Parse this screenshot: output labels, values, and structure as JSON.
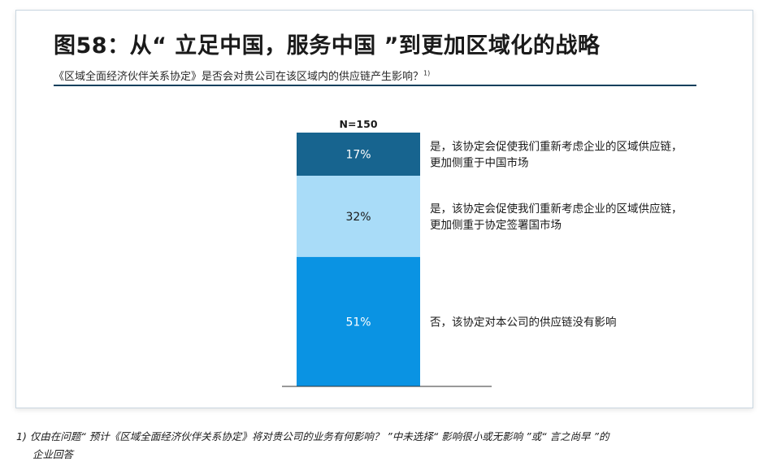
{
  "figure": {
    "title": "图58：从“ 立足中国，服务中国 ”到更加区域化的战略",
    "subtitle": "《区域全面经济伙伴关系协定》是否会对贵公司在该区域内的供应链产生影响？",
    "subtitle_note": "1)"
  },
  "chart_data": {
    "type": "bar",
    "stacked": true,
    "sample_label": "N=150",
    "unit": "%",
    "segments": [
      {
        "value": 17,
        "label": "17%",
        "text_lines": [
          "是，该协定会促使我们重新考虑企业的区域供应链，",
          "更加侧重于中国市场"
        ],
        "color": "#17648f",
        "label_color": "#ffffff"
      },
      {
        "value": 32,
        "label": "32%",
        "text_lines": [
          "是，该协定会促使我们重新考虑企业的区域供应链，",
          "更加侧重于协定签署国市场"
        ],
        "color": "#a9dcf8",
        "label_color": "#1a1a1a"
      },
      {
        "value": 51,
        "label": "51%",
        "text_lines": [
          "否，该协定对本公司的供应链没有影响"
        ],
        "color": "#0a93e3",
        "label_color": "#ffffff"
      }
    ],
    "total": 100
  },
  "footnote": {
    "line1": "1) 仅由在问题“ 预计《区域全面经济伙伴关系协定》将对贵公司的业务有何影响？ ”中未选择“ 影响很小或无影响 ”或“ 言之尚早 ”的",
    "line2": "企业回答"
  }
}
